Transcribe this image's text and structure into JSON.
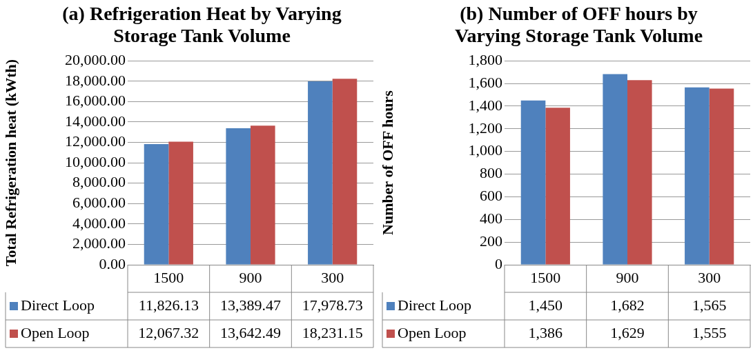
{
  "chart_data": [
    {
      "type": "bar",
      "title": "(a) Refrigeration Heat by Varying Storage Tank Volume",
      "ylabel": "Total Refrigeration heat (kWth)",
      "categories": [
        "1500",
        "900",
        "300"
      ],
      "series": [
        {
          "name": "Direct Loop",
          "color": "#4f81bd",
          "values": [
            11826.13,
            13389.47,
            17978.73
          ],
          "value_labels": [
            "11,826.13",
            "13,389.47",
            "17,978.73"
          ]
        },
        {
          "name": "Open Loop",
          "color": "#c0504d",
          "values": [
            12067.32,
            13642.49,
            18231.15
          ],
          "value_labels": [
            "12,067.32",
            "13,642.49",
            "18,231.15"
          ]
        }
      ],
      "ylim": [
        0,
        20000
      ],
      "yticks": [
        {
          "value": 0,
          "label": "0.00"
        },
        {
          "value": 2000,
          "label": "2,000.00"
        },
        {
          "value": 4000,
          "label": "4,000.00"
        },
        {
          "value": 6000,
          "label": "6,000.00"
        },
        {
          "value": 8000,
          "label": "8,000.00"
        },
        {
          "value": 10000,
          "label": "10,000.00"
        },
        {
          "value": 12000,
          "label": "12,000.00"
        },
        {
          "value": 14000,
          "label": "14,000.00"
        },
        {
          "value": 16000,
          "label": "16,000.00"
        },
        {
          "value": 18000,
          "label": "18,000.00"
        },
        {
          "value": 20000,
          "label": "20,000.00"
        }
      ],
      "grid": "y",
      "legend": "bottom"
    },
    {
      "type": "bar",
      "title": "(b) Number of OFF hours by Varying Storage Tank Volume",
      "ylabel": "Number of OFF hours",
      "categories": [
        "1500",
        "900",
        "300"
      ],
      "series": [
        {
          "name": "Direct Loop",
          "color": "#4f81bd",
          "values": [
            1450,
            1682,
            1565
          ],
          "value_labels": [
            "1,450",
            "1,682",
            "1,565"
          ]
        },
        {
          "name": "Open Loop",
          "color": "#c0504d",
          "values": [
            1386,
            1629,
            1555
          ],
          "value_labels": [
            "1,386",
            "1,629",
            "1,555"
          ]
        }
      ],
      "ylim": [
        0,
        1800
      ],
      "yticks": [
        0,
        200,
        400,
        600,
        800,
        {
          "value": 1000,
          "label": "1,000"
        },
        {
          "value": 1200,
          "label": "1,200"
        },
        {
          "value": 1400,
          "label": "1,400"
        },
        {
          "value": 1600,
          "label": "1,600"
        },
        {
          "value": 1800,
          "label": "1,800"
        }
      ],
      "grid": "y",
      "legend": "bottom"
    }
  ]
}
